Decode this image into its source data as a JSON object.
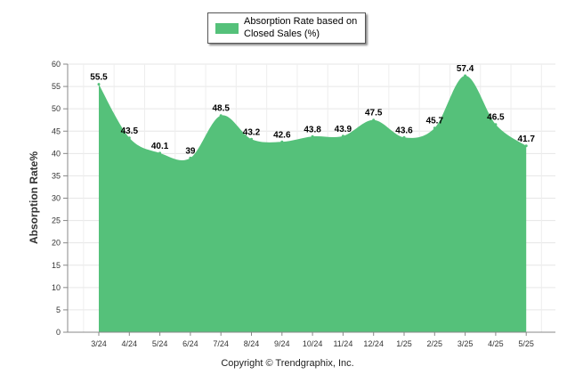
{
  "chart_data": {
    "type": "area",
    "categories": [
      "3/24",
      "4/24",
      "5/24",
      "6/24",
      "7/24",
      "8/24",
      "9/24",
      "10/24",
      "11/24",
      "12/24",
      "1/25",
      "2/25",
      "3/25",
      "4/25",
      "5/25"
    ],
    "series": [
      {
        "name": "Absorption Rate based on Closed Sales (%)",
        "values": [
          55.5,
          43.5,
          40.1,
          39,
          48.5,
          43.2,
          42.6,
          43.8,
          43.9,
          47.5,
          43.6,
          45.7,
          57.4,
          46.5,
          41.7
        ],
        "color": "#55C17A"
      }
    ],
    "data_labels": [
      "55.5",
      "43.5",
      "40.1",
      "39",
      "48.5",
      "43.2",
      "42.6",
      "43.8",
      "43.9",
      "47.5",
      "43.6",
      "45.7",
      "57.4",
      "46.5",
      "41.7"
    ],
    "ylabel": "Absorption Rate%",
    "xlabel": "",
    "ylim": [
      0,
      60
    ],
    "yticks": [
      "0",
      "5",
      "10",
      "15",
      "20",
      "25",
      "30",
      "35",
      "40",
      "45",
      "50",
      "55",
      "60"
    ],
    "grid": true,
    "legend_position": "top-center"
  },
  "legend": {
    "label": "Absorption Rate based on Closed Sales (%)"
  },
  "footer": {
    "copyright": "Copyright © Trendgraphix, Inc."
  }
}
